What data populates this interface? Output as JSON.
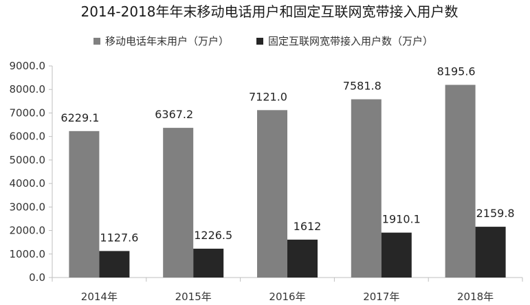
{
  "chart_data": {
    "type": "bar",
    "title": "2014-2018年年末移动电话用户和固定互联网宽带接入用户数",
    "categories": [
      "2014年",
      "2015年",
      "2016年",
      "2017年",
      "2018年"
    ],
    "series": [
      {
        "name": "移动电话年末用户（万户）",
        "values": [
          6229.1,
          6367.2,
          7121.0,
          7581.8,
          8195.6
        ],
        "labels": [
          "6229.1",
          "6367.2",
          "7121.0",
          "7581.8",
          "8195.6"
        ],
        "color": "#808080"
      },
      {
        "name": "固定互联网宽带接入用户数（万户）",
        "values": [
          1127.6,
          1226.5,
          1612,
          1910.1,
          2159.8
        ],
        "labels": [
          "1127.6",
          "1226.5",
          "1612",
          "1910.1",
          "2159.8"
        ],
        "color": "#262626"
      }
    ],
    "ylim": [
      0,
      9000
    ],
    "yticks": [
      "0.0",
      "1000.0",
      "2000.0",
      "3000.0",
      "4000.0",
      "5000.0",
      "6000.0",
      "7000.0",
      "8000.0",
      "9000.0"
    ],
    "legend_position": "top",
    "grid": false,
    "xlabel": "",
    "ylabel": ""
  }
}
